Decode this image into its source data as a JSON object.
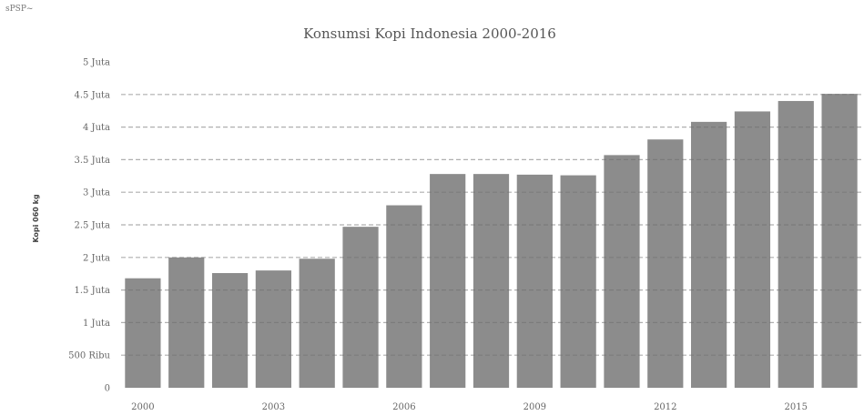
{
  "corner_label": "sPSP~",
  "chart_data": {
    "type": "bar",
    "title": "Konsumsi Kopi Indonesia 2000-2016",
    "ylabel": "Kopi 060 kg",
    "xlabel": "",
    "categories": [
      "2000",
      "2001",
      "2002",
      "2003",
      "2004",
      "2005",
      "2006",
      "2007",
      "2008",
      "2009",
      "2010",
      "2011",
      "2012",
      "2013",
      "2014",
      "2015",
      "2016"
    ],
    "x_tick_labels": [
      "2000",
      "2003",
      "2006",
      "2009",
      "2012",
      "2015"
    ],
    "values": [
      1680000,
      2000000,
      1760000,
      1800000,
      1980000,
      2470000,
      2800000,
      3280000,
      3280000,
      3270000,
      3260000,
      3570000,
      3810000,
      4080000,
      4240000,
      4400000,
      4510000
    ],
    "ylim": [
      0,
      5000000
    ],
    "y_ticks": [
      0,
      500000,
      1000000,
      1500000,
      2000000,
      2500000,
      3000000,
      3500000,
      4000000,
      4500000,
      5000000
    ],
    "y_tick_labels": [
      "0",
      "500 Ribu",
      "1 Juta",
      "1.5 Juta",
      "2 Juta",
      "2.5 Juta",
      "3 Juta",
      "3.5 Juta",
      "4 Juta",
      "4.5 Juta",
      "5 Juta"
    ],
    "grid": true,
    "colors": {
      "bar": "#8c8c8c",
      "grid": "#6e6e6e"
    }
  }
}
